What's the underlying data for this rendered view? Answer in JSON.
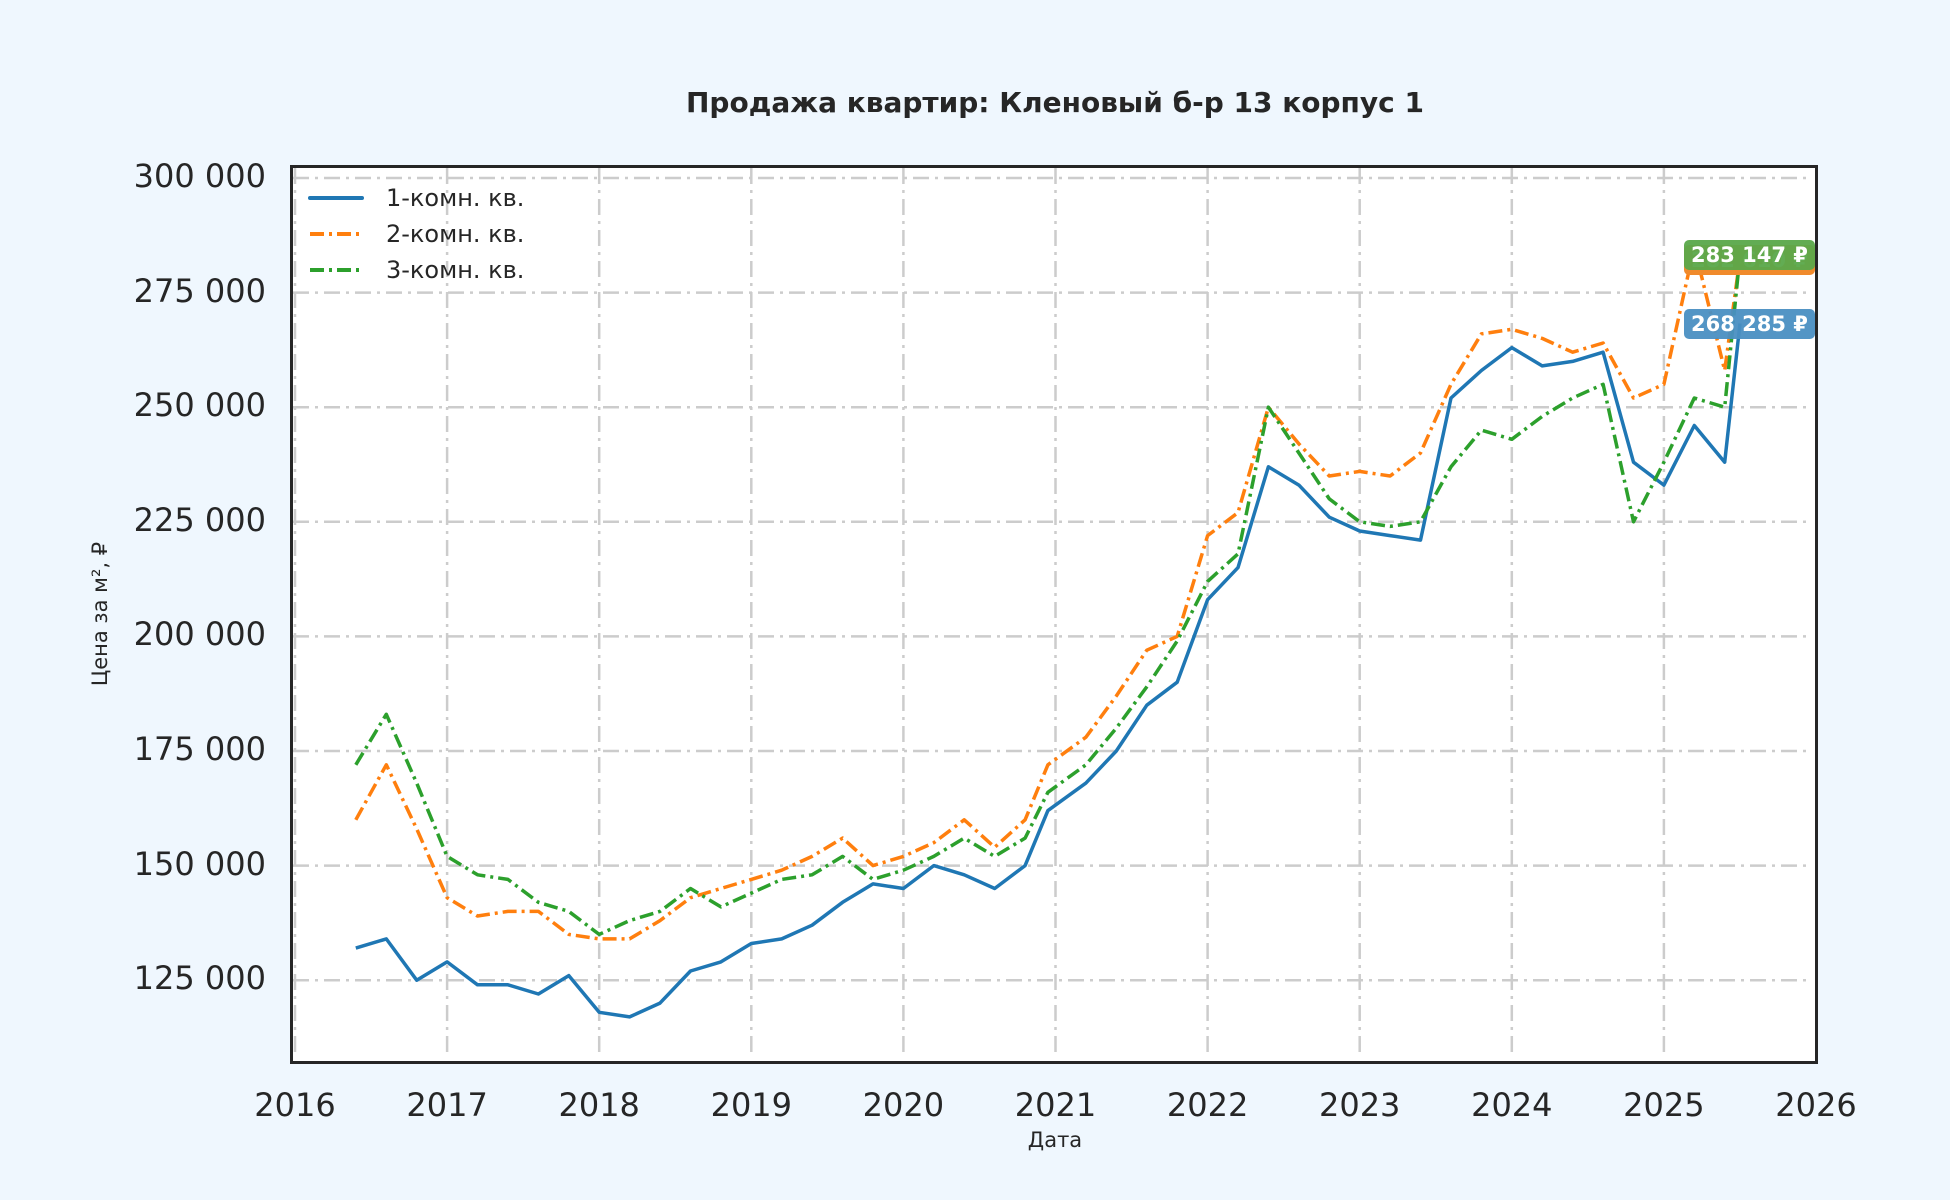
{
  "chart_data": {
    "type": "line",
    "title": "Продажа квартир: Кленовый б-р 13 корпус 1",
    "xlabel": "Дата",
    "ylabel": "Цена за м², ₽",
    "xlim": [
      2016,
      2026
    ],
    "ylim": [
      108000,
      303000
    ],
    "x_ticks": [
      "2016",
      "2017",
      "2018",
      "2019",
      "2020",
      "2021",
      "2022",
      "2023",
      "2024",
      "2025",
      "2026"
    ],
    "y_ticks": [
      "300 000",
      "275 000",
      "250 000",
      "225 000",
      "200 000",
      "175 000",
      "150 000",
      "125 000"
    ],
    "grid": true,
    "legend_position": "upper left",
    "x": [
      2016.4,
      2016.6,
      2016.8,
      2017.0,
      2017.2,
      2017.4,
      2017.6,
      2017.8,
      2018.0,
      2018.2,
      2018.4,
      2018.6,
      2018.8,
      2019.0,
      2019.2,
      2019.4,
      2019.6,
      2019.8,
      2020.0,
      2020.2,
      2020.4,
      2020.6,
      2020.8,
      2020.95,
      2021.2,
      2021.4,
      2021.6,
      2021.8,
      2022.0,
      2022.2,
      2022.4,
      2022.6,
      2022.8,
      2023.0,
      2023.2,
      2023.4,
      2023.6,
      2023.8,
      2024.0,
      2024.2,
      2024.4,
      2024.6,
      2024.8,
      2025.0,
      2025.2,
      2025.4,
      2025.5
    ],
    "series": [
      {
        "name": "1-комн. кв.",
        "color": "#1f77b4",
        "style": "solid",
        "values": [
          132000,
          134000,
          125000,
          129000,
          124000,
          124000,
          122000,
          126000,
          118000,
          117000,
          120000,
          127000,
          129000,
          133000,
          134000,
          137000,
          142000,
          146000,
          145000,
          150000,
          148000,
          145000,
          150000,
          162000,
          168000,
          175000,
          185000,
          190000,
          208000,
          215000,
          237000,
          233000,
          226000,
          223000,
          222000,
          221000,
          252000,
          258000,
          263000,
          259000,
          260000,
          262000,
          238000,
          233000,
          246000,
          238000,
          268285
        ]
      },
      {
        "name": "2-комн. кв.",
        "color": "#ff7f0e",
        "style": "dashdot",
        "values": [
          160000,
          172000,
          158000,
          143000,
          139000,
          140000,
          140000,
          135000,
          134000,
          134000,
          138000,
          143000,
          145000,
          147000,
          149000,
          152000,
          156000,
          150000,
          152000,
          155000,
          160000,
          154000,
          160000,
          172000,
          178000,
          187000,
          197000,
          200000,
          222000,
          227000,
          250000,
          242000,
          235000,
          236000,
          235000,
          240000,
          255000,
          266000,
          267000,
          265000,
          262000,
          264000,
          252000,
          255000,
          285000,
          258000,
          282610
        ]
      },
      {
        "name": "3-комн. кв.",
        "color": "#2ca02c",
        "style": "dashdot",
        "values": [
          172000,
          183000,
          168000,
          152000,
          148000,
          147000,
          142000,
          140000,
          135000,
          138000,
          140000,
          145000,
          141000,
          144000,
          147000,
          148000,
          152000,
          147000,
          149000,
          152000,
          156000,
          152000,
          156000,
          166000,
          172000,
          180000,
          189000,
          199000,
          212000,
          218000,
          250000,
          240000,
          230000,
          225000,
          224000,
          225000,
          237000,
          245000,
          243000,
          248000,
          252000,
          255000,
          225000,
          238000,
          252000,
          250000,
          283147
        ]
      }
    ],
    "end_labels": [
      {
        "series": "3-комн. кв.",
        "text": "283 147 ₽",
        "color": "#5aa84a"
      },
      {
        "series": "2-комн. кв.",
        "text": "282 610 ₽",
        "color": "#f08a2c"
      },
      {
        "series": "1-комн. кв.",
        "text": "268 285 ₽",
        "color": "#4a8fc2"
      }
    ]
  }
}
